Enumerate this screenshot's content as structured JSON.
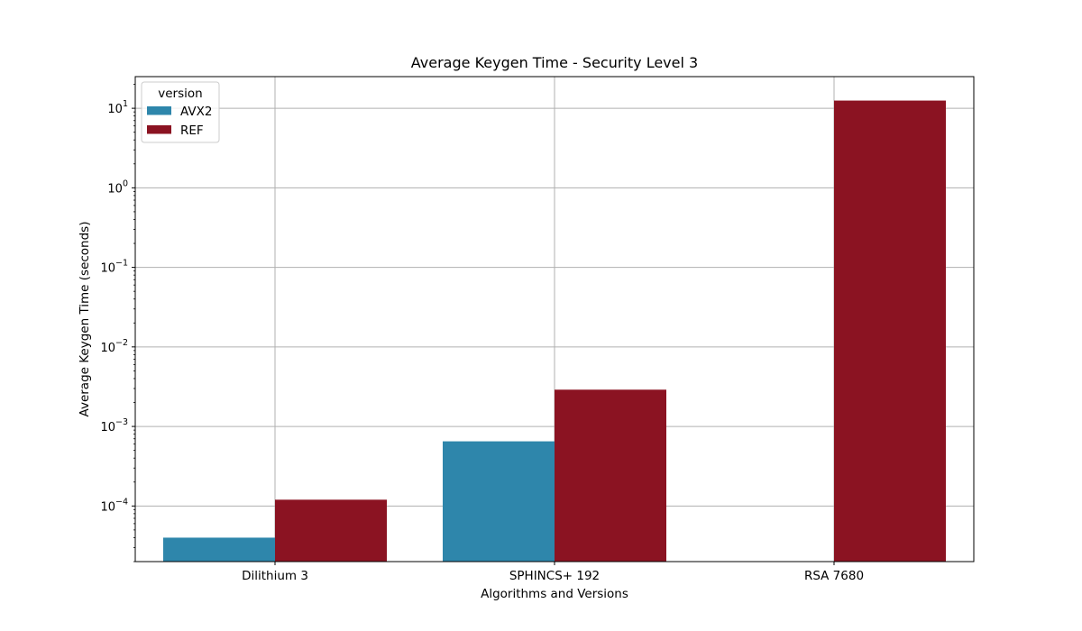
{
  "chart_data": {
    "type": "bar",
    "title": "Average Keygen Time - Security Level 3",
    "xlabel": "Algorithms and Versions",
    "ylabel": "Average Keygen Time (seconds)",
    "yscale": "log",
    "ylim": [
      2e-05,
      25
    ],
    "y_ticks": [
      {
        "value": 0.0001,
        "mant": "10",
        "exp": "−4"
      },
      {
        "value": 0.001,
        "mant": "10",
        "exp": "−3"
      },
      {
        "value": 0.01,
        "mant": "10",
        "exp": "−2"
      },
      {
        "value": 0.1,
        "mant": "10",
        "exp": "−1"
      },
      {
        "value": 1,
        "mant": "10",
        "exp": "0"
      },
      {
        "value": 10,
        "mant": "10",
        "exp": "1"
      }
    ],
    "categories": [
      "Dilithium 3",
      "SPHINCS+ 192",
      "RSA 7680"
    ],
    "series": [
      {
        "name": "AVX2",
        "color": "#2e86ab",
        "values": [
          4e-05,
          0.00065,
          null
        ]
      },
      {
        "name": "REF",
        "color": "#8b1322",
        "values": [
          0.00012,
          0.0029,
          12.5
        ]
      }
    ],
    "legend": {
      "title": "version",
      "placement": "top-left"
    },
    "grid": true
  }
}
